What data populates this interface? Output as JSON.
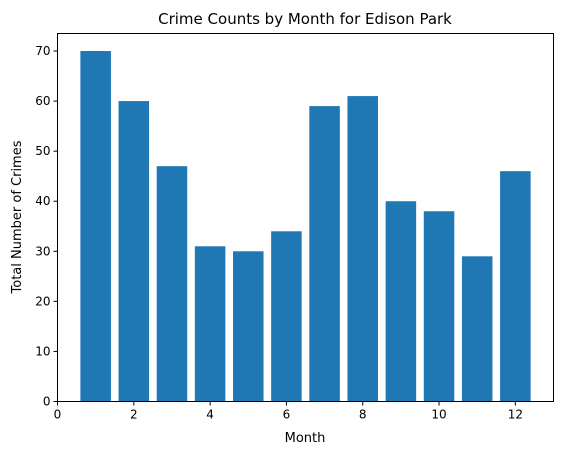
{
  "chart_data": {
    "type": "bar",
    "title": "Crime Counts by Month for Edison Park",
    "xlabel": "Month",
    "ylabel": "Total Number of Crimes",
    "x": [
      1,
      2,
      3,
      4,
      5,
      6,
      7,
      8,
      9,
      10,
      11,
      12
    ],
    "values": [
      70,
      60,
      47,
      31,
      30,
      34,
      59,
      61,
      40,
      38,
      29,
      46
    ],
    "xlim": [
      0,
      13
    ],
    "ylim": [
      0,
      73.5
    ],
    "xticks": [
      0,
      2,
      4,
      6,
      8,
      10,
      12
    ],
    "yticks": [
      0,
      10,
      20,
      30,
      40,
      50,
      60,
      70
    ],
    "bar_color": "#1f77b4",
    "grid": false
  }
}
